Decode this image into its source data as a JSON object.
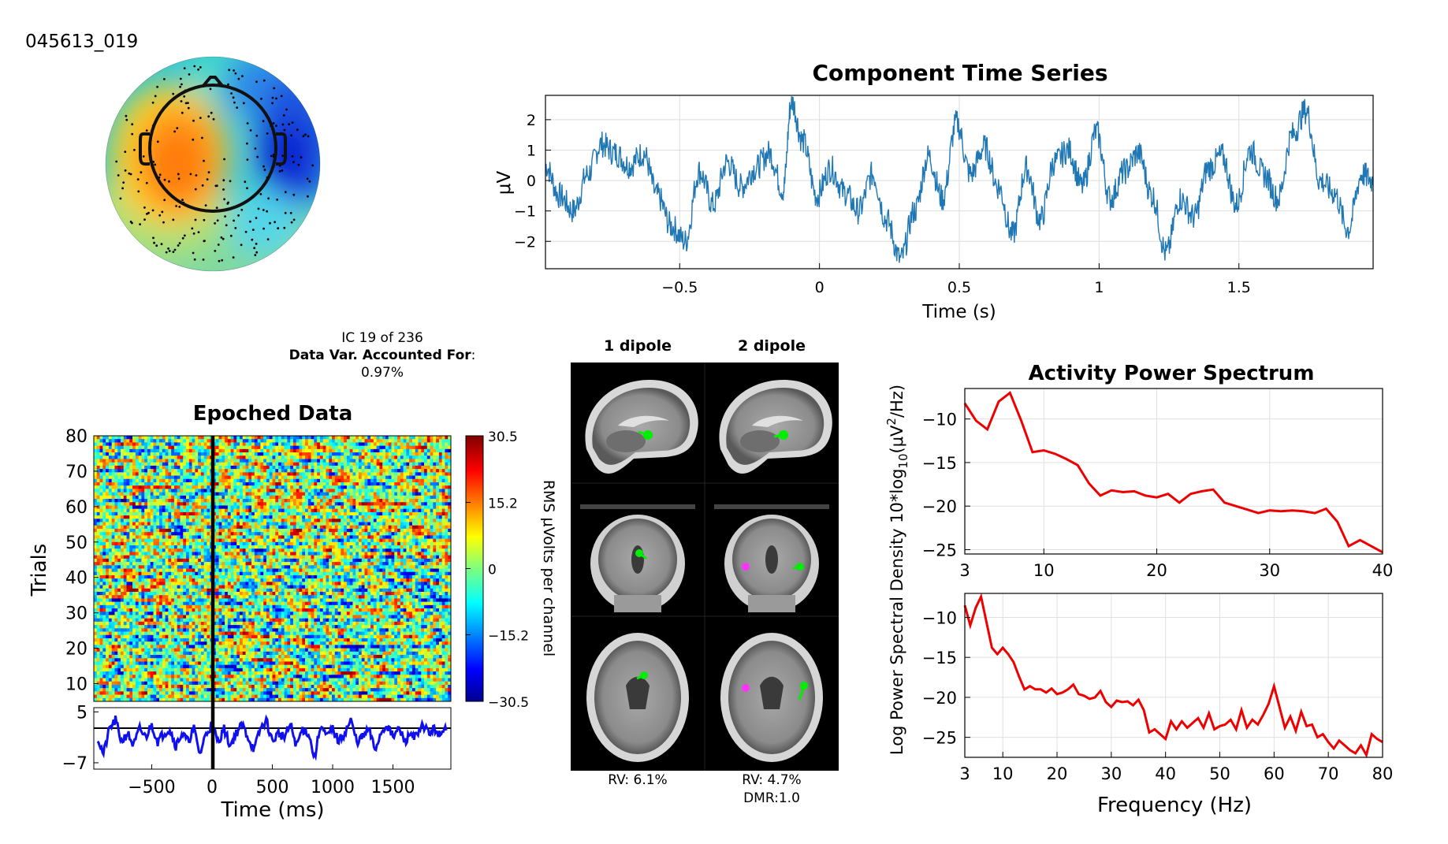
{
  "component_id": "045613_019",
  "ic_info": {
    "line1": "IC 19 of 236",
    "line2_bold": "Data Var. Accounted For",
    "line2_rest": ":",
    "line3": "0.97%"
  },
  "dipole": {
    "col1_title": "1 dipole",
    "col2_title": "2 dipole",
    "rv1": "RV: 6.1%",
    "rv2": "RV: 4.7%",
    "dmr2": "DMR:1.0",
    "colors": {
      "dipole1": "#00ee00",
      "dipole2": "#ff33ff"
    }
  },
  "chart_data": [
    {
      "id": "time-series",
      "type": "line",
      "title": "Component Time Series",
      "xlabel": "Time (s)",
      "ylabel": "μV",
      "xlim": [
        -0.98,
        1.98
      ],
      "ylim": [
        -2.9,
        2.8
      ],
      "xticks": [
        -0.5,
        0,
        0.5,
        1,
        1.5
      ],
      "xtick_labels": [
        "−0.5",
        "0",
        "0.5",
        "1",
        "1.5"
      ],
      "yticks": [
        2,
        1,
        0,
        -1,
        -2
      ],
      "ytick_labels": [
        "2",
        "1",
        "0",
        "−1",
        "−2"
      ],
      "grid": true,
      "color": "#1f77b4",
      "series": [
        {
          "x": [
            -0.98,
            -0.93,
            -0.88,
            -0.83,
            -0.78,
            -0.73,
            -0.68,
            -0.63,
            -0.58,
            -0.53,
            -0.48,
            -0.43,
            -0.38,
            -0.33,
            -0.28,
            -0.23,
            -0.18,
            -0.13,
            -0.1,
            -0.06,
            -0.01,
            0.04,
            0.09,
            0.14,
            0.19,
            0.24,
            0.29,
            0.34,
            0.39,
            0.44,
            0.49,
            0.54,
            0.59,
            0.64,
            0.69,
            0.74,
            0.79,
            0.84,
            0.89,
            0.94,
            0.99,
            1.04,
            1.09,
            1.14,
            1.19,
            1.24,
            1.29,
            1.34,
            1.39,
            1.44,
            1.49,
            1.54,
            1.59,
            1.64,
            1.69,
            1.74,
            1.79,
            1.84,
            1.89,
            1.94,
            1.98
          ],
          "y": [
            0.5,
            -0.5,
            -1.0,
            0.2,
            1.2,
            0.9,
            0.5,
            0.9,
            -0.5,
            -1.5,
            -2.0,
            0.3,
            -0.8,
            0.6,
            -0.2,
            0.4,
            0.9,
            -0.3,
            2.6,
            1.3,
            -0.5,
            0.4,
            -0.4,
            -1.0,
            0.2,
            -1.3,
            -2.6,
            -1.0,
            0.8,
            -0.6,
            1.9,
            0.2,
            1.1,
            -0.2,
            -1.8,
            0.4,
            -1.3,
            0.6,
            1.0,
            -0.2,
            1.6,
            -0.6,
            0.3,
            0.9,
            -0.5,
            -2.4,
            -0.6,
            -1.2,
            0.4,
            0.8,
            -0.8,
            1.0,
            0.2,
            -0.6,
            1.5,
            2.3,
            0.0,
            -0.4,
            -1.6,
            0.2,
            0.0
          ]
        }
      ]
    },
    {
      "id": "erp-image",
      "type": "heatmap",
      "title": "Epoched Data",
      "xlabel": "Time (ms)",
      "ylabel": "Trials",
      "xlim": [
        -980,
        1980
      ],
      "ylim": [
        5,
        80
      ],
      "xticks": [
        -500,
        0,
        500,
        1000,
        1500
      ],
      "xtick_labels": [
        "−500",
        "0",
        "500",
        "1000",
        "1500"
      ],
      "yticks": [
        80,
        70,
        60,
        50,
        40,
        30,
        20,
        10
      ],
      "colorbar_label": "RMS μVolts per channel",
      "colorbar_ticks": [
        30.5,
        15.2,
        0,
        -15.2,
        -30.5
      ],
      "colorbar_tick_labels": [
        "30.5",
        "15.2",
        "0",
        "−15.2",
        "−30.5"
      ],
      "erp_yticks": [
        5,
        -7
      ],
      "erp_ytick_labels": [
        "5",
        "−7"
      ],
      "erp_ylim": [
        -8.5,
        6
      ],
      "erp_color": "#1010ee",
      "erp": {
        "x": [
          -950,
          -900,
          -850,
          -800,
          -750,
          -700,
          -650,
          -600,
          -550,
          -500,
          -450,
          -400,
          -350,
          -300,
          -250,
          -200,
          -150,
          -100,
          -50,
          0,
          50,
          100,
          150,
          200,
          250,
          300,
          350,
          400,
          450,
          500,
          550,
          600,
          650,
          700,
          750,
          800,
          850,
          900,
          950,
          1000,
          1050,
          1100,
          1150,
          1200,
          1250,
          1300,
          1350,
          1400,
          1450,
          1500,
          1550,
          1600,
          1650,
          1700,
          1750,
          1800,
          1850,
          1900,
          1950
        ],
        "y": [
          -1,
          -5,
          1,
          3,
          -2,
          0,
          -3,
          1,
          -1,
          2,
          -2,
          0,
          1,
          -3,
          0,
          -2,
          1,
          -5,
          0,
          2,
          -2,
          1,
          -3,
          0,
          2,
          -1,
          -4,
          1,
          3,
          -2,
          0,
          -1,
          2,
          -3,
          1,
          0,
          -6,
          2,
          -1,
          1,
          -2,
          0,
          3,
          -2,
          -1,
          1,
          -4,
          0,
          2,
          -1,
          1,
          -2,
          0,
          -1,
          2,
          0,
          1,
          -1,
          2
        ]
      }
    },
    {
      "id": "spectrum-top",
      "type": "line",
      "title": "Activity Power Spectrum",
      "xlim": [
        3,
        40
      ],
      "ylim": [
        -25.5,
        -6.5
      ],
      "xticks": [
        3,
        10,
        20,
        30,
        40
      ],
      "xtick_labels": [
        "3",
        "10",
        "20",
        "30",
        "40"
      ],
      "yticks": [
        -10,
        -15,
        -20,
        -25
      ],
      "ytick_labels": [
        "−10",
        "−15",
        "−20",
        "−25"
      ],
      "grid": true,
      "color": "#ee0000",
      "x": [
        3,
        4,
        5,
        6,
        7,
        8,
        9,
        10,
        11,
        12,
        13,
        14,
        15,
        16,
        17,
        18,
        19,
        20,
        21,
        22,
        23,
        24,
        25,
        26,
        27,
        28,
        29,
        30,
        31,
        32,
        33,
        34,
        35,
        36,
        37,
        38,
        39,
        40
      ],
      "y": [
        -8.2,
        -10.2,
        -11.2,
        -8.0,
        -7.0,
        -10.2,
        -13.8,
        -13.6,
        -14.0,
        -14.6,
        -15.3,
        -17.4,
        -18.8,
        -18.2,
        -18.4,
        -18.3,
        -18.8,
        -19.0,
        -18.6,
        -19.6,
        -18.6,
        -18.3,
        -18.1,
        -19.6,
        -20.0,
        -20.4,
        -20.8,
        -20.5,
        -20.6,
        -20.5,
        -20.6,
        -20.8,
        -20.3,
        -21.8,
        -24.6,
        -23.9,
        -24.6,
        -25.3
      ]
    },
    {
      "id": "spectrum-bottom",
      "type": "line",
      "xlabel": "Frequency (Hz)",
      "ylabel_shared": "Log Power Spectral Density 10*log",
      "ylabel_sub": "10",
      "ylabel_tail": "(μV",
      "ylabel_sup": "2",
      "ylabel_end": "/Hz)",
      "xlim": [
        3,
        80
      ],
      "ylim": [
        -27.5,
        -7
      ],
      "xticks": [
        3,
        10,
        20,
        30,
        40,
        50,
        60,
        70,
        80
      ],
      "xtick_labels": [
        "3",
        "10",
        "20",
        "30",
        "40",
        "50",
        "60",
        "70",
        "80"
      ],
      "yticks": [
        -10,
        -15,
        -20,
        -25
      ],
      "ytick_labels": [
        "−10",
        "−15",
        "−20",
        "−25"
      ],
      "grid": true,
      "color": "#ee0000",
      "x": [
        3,
        4,
        5,
        6,
        7,
        8,
        9,
        10,
        11,
        12,
        13,
        14,
        15,
        16,
        17,
        18,
        19,
        20,
        21,
        22,
        23,
        24,
        25,
        26,
        27,
        28,
        29,
        30,
        31,
        32,
        33,
        34,
        35,
        36,
        37,
        38,
        39,
        40,
        41,
        42,
        43,
        44,
        45,
        46,
        47,
        48,
        49,
        50,
        51,
        52,
        53,
        54,
        55,
        56,
        57,
        58,
        59,
        60,
        61,
        62,
        63,
        64,
        65,
        66,
        67,
        68,
        69,
        70,
        71,
        72,
        73,
        74,
        75,
        76,
        77,
        78,
        79,
        80
      ],
      "y": [
        -8.5,
        -11.0,
        -8.8,
        -7.4,
        -10.6,
        -13.8,
        -14.6,
        -13.8,
        -14.6,
        -15.6,
        -17.4,
        -19.0,
        -18.6,
        -19.0,
        -19.0,
        -19.4,
        -18.9,
        -19.6,
        -19.4,
        -19.0,
        -18.4,
        -19.6,
        -19.8,
        -20.2,
        -20.0,
        -19.2,
        -20.6,
        -21.2,
        -20.4,
        -20.6,
        -20.5,
        -21.0,
        -20.3,
        -21.6,
        -24.4,
        -24.0,
        -24.6,
        -25.2,
        -23.0,
        -24.0,
        -23.0,
        -23.8,
        -23.2,
        -22.6,
        -23.8,
        -22.0,
        -24.0,
        -23.6,
        -23.4,
        -22.8,
        -24.0,
        -21.6,
        -23.8,
        -22.8,
        -23.4,
        -22.2,
        -20.8,
        -18.6,
        -21.2,
        -23.8,
        -22.4,
        -24.2,
        -21.8,
        -23.6,
        -23.4,
        -25.0,
        -24.6,
        -25.6,
        -26.4,
        -25.4,
        -26.0,
        -26.6,
        -27.0,
        -26.0,
        -27.2,
        -24.6,
        -25.2,
        -25.6
      ]
    }
  ]
}
